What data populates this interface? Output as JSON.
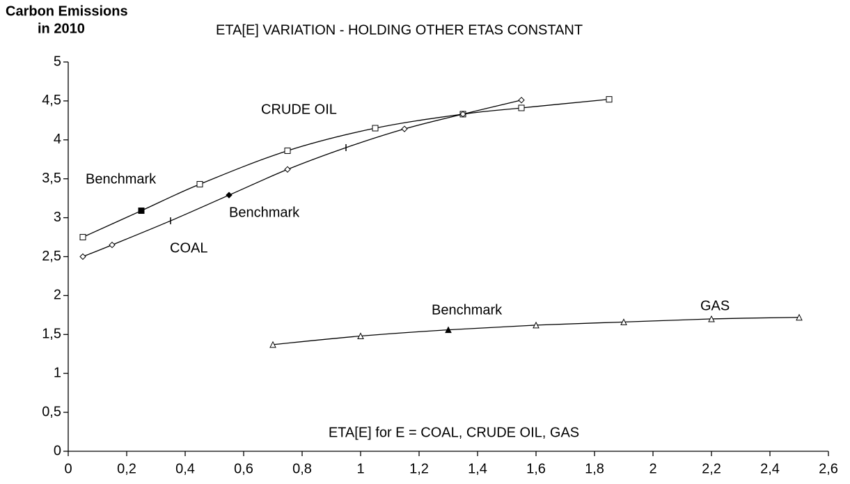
{
  "chart_data": {
    "type": "line",
    "title": "ETA[E] VARIATION - HOLDING OTHER ETAS CONSTANT",
    "y_label": [
      "Carbon Emissions",
      "in 2010"
    ],
    "x_label": "ETA[E] for E = COAL, CRUDE OIL, GAS",
    "xlim": [
      0,
      2.6
    ],
    "xticks": [
      0,
      {
        "value": 0.2,
        "label": "0,2"
      },
      {
        "value": 0.4,
        "label": "0,4"
      },
      {
        "value": 0.6,
        "label": "0,6"
      },
      {
        "value": 0.8,
        "label": "0,8"
      },
      1,
      {
        "value": 1.2,
        "label": "1,2"
      },
      {
        "value": 1.4,
        "label": "1,4"
      },
      {
        "value": 1.6,
        "label": "1,6"
      },
      {
        "value": 1.8,
        "label": "1,8"
      },
      2,
      {
        "value": 2.2,
        "label": "2,2"
      },
      {
        "value": 2.4,
        "label": "2,4"
      },
      {
        "value": 2.6,
        "label": "2,6"
      }
    ],
    "ylim": [
      0,
      5
    ],
    "yticks": [
      0,
      {
        "value": 0.5,
        "label": "0,5"
      },
      1,
      {
        "value": 1.5,
        "label": "1,5"
      },
      2,
      {
        "value": 2.5,
        "label": "2,5"
      },
      3,
      {
        "value": 3.5,
        "label": "3,5"
      },
      4,
      {
        "value": 4.5,
        "label": "4,5"
      },
      5
    ],
    "grid": false,
    "series": [
      {
        "name": "CRUDE OIL",
        "color": "#000000",
        "x": [
          0.05,
          0.25,
          0.45,
          0.75,
          1.05,
          1.35,
          1.55,
          1.85
        ],
        "values": [
          2.75,
          3.09,
          3.43,
          3.86,
          4.15,
          4.33,
          4.41,
          4.52
        ],
        "markers": [
          "square",
          "square-filled",
          "square",
          "square",
          "square",
          "square",
          "square",
          "square"
        ]
      },
      {
        "name": "COAL",
        "color": "#000000",
        "x": [
          0.05,
          0.15,
          0.35,
          0.55,
          0.75,
          0.95,
          1.15,
          1.35,
          1.55
        ],
        "values": [
          2.5,
          2.65,
          2.96,
          3.29,
          3.62,
          3.9,
          4.14,
          4.33,
          4.51
        ],
        "markers": [
          "diamond",
          "diamond",
          "tick",
          "diamond-filled",
          "diamond",
          "tick",
          "diamond",
          "diamond",
          "diamond"
        ]
      },
      {
        "name": "GAS",
        "color": "#000000",
        "x": [
          0.7,
          1.0,
          1.3,
          1.6,
          1.9,
          2.2,
          2.5
        ],
        "values": [
          1.37,
          1.48,
          1.56,
          1.62,
          1.66,
          1.7,
          1.72
        ],
        "markers": [
          "triangle",
          "triangle",
          "triangle-filled",
          "triangle",
          "triangle",
          "triangle",
          "triangle"
        ]
      }
    ],
    "annotations": [
      "Benchmark",
      "Benchmark",
      "Benchmark"
    ]
  }
}
